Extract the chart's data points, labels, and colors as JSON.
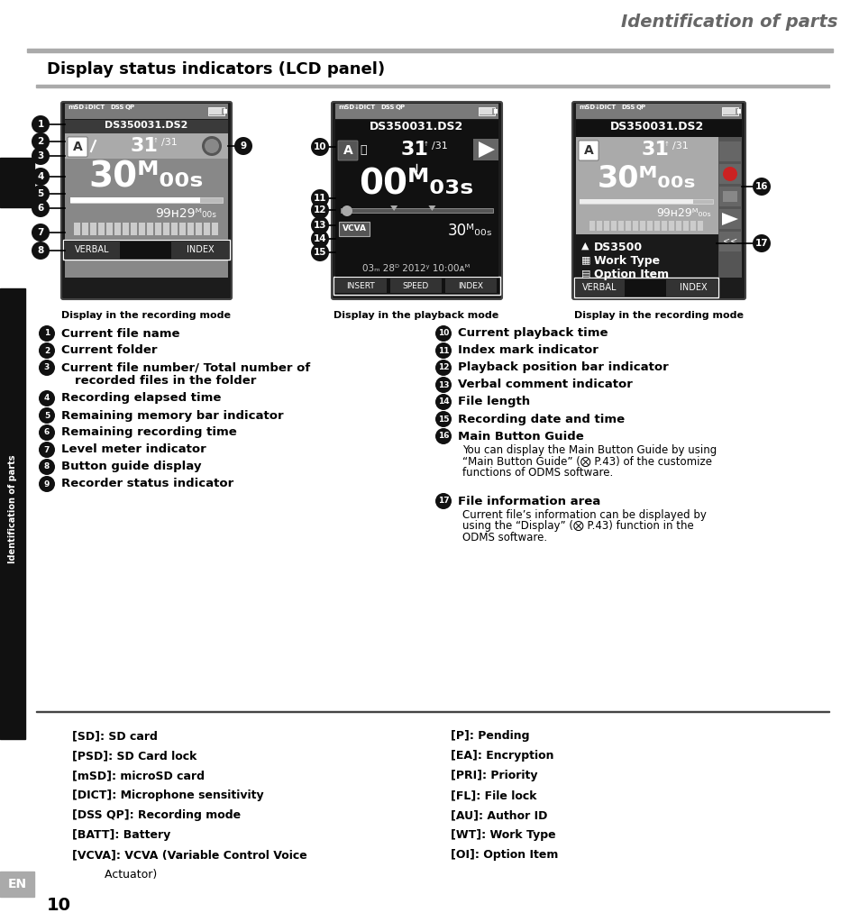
{
  "title_right": "Identification of parts",
  "section_title": "Display status indicators (LCD panel)",
  "sidebar_text": "Identification of parts",
  "page_number": "10",
  "corner_label": "EN",
  "display_captions": [
    "Display in the recording mode",
    "Display in the playback mode",
    "Display in the recording mode"
  ],
  "left_items": [
    {
      "num": "1",
      "bold": "Current file name",
      "extra": null
    },
    {
      "num": "2",
      "bold": "Current folder",
      "extra": null
    },
    {
      "num": "3",
      "bold": "Current file number/ Total number of",
      "extra": "recorded files in the folder"
    },
    {
      "num": "4",
      "bold": "Recording elapsed time",
      "extra": null
    },
    {
      "num": "5",
      "bold": "Remaining memory bar indicator",
      "extra": null
    },
    {
      "num": "6",
      "bold": "Remaining recording time",
      "extra": null
    },
    {
      "num": "7",
      "bold": "Level meter indicator",
      "extra": null
    },
    {
      "num": "8",
      "bold": "Button guide display",
      "extra": null
    },
    {
      "num": "9",
      "bold": "Recorder status indicator",
      "extra": null
    }
  ],
  "right_items": [
    {
      "num": "10",
      "bold": "Current playback time",
      "subtext": null
    },
    {
      "num": "11",
      "bold": "Index mark indicator",
      "subtext": null
    },
    {
      "num": "12",
      "bold": "Playback position bar indicator",
      "subtext": null
    },
    {
      "num": "13",
      "bold": "Verbal comment indicator",
      "subtext": null
    },
    {
      "num": "14",
      "bold": "File length",
      "subtext": null
    },
    {
      "num": "15",
      "bold": "Recording date and time",
      "subtext": null
    },
    {
      "num": "16",
      "bold": "Main Button Guide",
      "subtext": "You can display the Main Button Guide by using\n“Main Button Guide” (⨂ P.43) of the customize\nfunctions of ODMS software."
    },
    {
      "num": "17",
      "bold": "File information area",
      "subtext": "Current file’s information can be displayed by\nusing the “Display” (⨂ P.43) function in the\nODMS software."
    }
  ],
  "bottom_left_items": [
    "[SD]: SD card",
    "[PSD]: SD Card lock",
    "[mSD]: microSD card",
    "[DICT]: Microphone sensitivity",
    "[DSS QP]: Recording mode",
    "[BATT]: Battery",
    "[VCVA]: VCVA (Variable Control Voice",
    "         Actuator)"
  ],
  "bottom_right_items": [
    "[P]: Pending",
    "[EA]: Encryption",
    "[PRI]: Priority",
    "[FL]: File lock",
    "[AU]: Author ID",
    "[WT]: Work Type",
    "[OI]: Option Item"
  ]
}
